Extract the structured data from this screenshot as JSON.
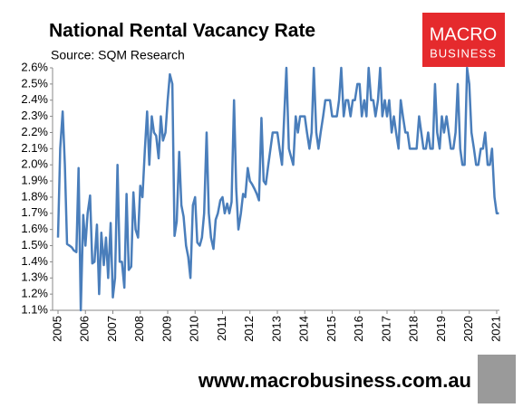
{
  "chart_data": {
    "type": "line",
    "title": "National Rental Vacancy Rate",
    "subtitle": "Source: SQM Research",
    "logo": {
      "line1": "MACRO",
      "line2": "BUSINESS"
    },
    "footer": "www.macrobusiness.com.au",
    "xlim": [
      2005,
      2021.1
    ],
    "xticks": [
      2005,
      2006,
      2007,
      2008,
      2009,
      2010,
      2011,
      2012,
      2013,
      2014,
      2015,
      2016,
      2017,
      2018,
      2019,
      2020,
      2021
    ],
    "ylim": [
      1.1,
      2.6
    ],
    "yticks": [
      {
        "value": 1.1,
        "label": "1.1%"
      },
      {
        "value": 1.2,
        "label": "1.2%"
      },
      {
        "value": 1.3,
        "label": "1.3%"
      },
      {
        "value": 1.4,
        "label": "1.4%"
      },
      {
        "value": 1.5,
        "label": "1.5%"
      },
      {
        "value": 1.6,
        "label": "1.6%"
      },
      {
        "value": 1.7,
        "label": "1.7%"
      },
      {
        "value": 1.8,
        "label": "1.8%"
      },
      {
        "value": 1.9,
        "label": "1.9%"
      },
      {
        "value": 2.0,
        "label": "2.0%"
      },
      {
        "value": 2.1,
        "label": "2.1%"
      },
      {
        "value": 2.2,
        "label": "2.2%"
      },
      {
        "value": 2.3,
        "label": "2.3%"
      },
      {
        "value": 2.4,
        "label": "2.4%"
      },
      {
        "value": 2.5,
        "label": "2.5%"
      },
      {
        "value": 2.6,
        "label": "2.6%"
      }
    ],
    "grid": false,
    "x": [
      2005,
      2005.08,
      2005.17,
      2005.25,
      2005.33,
      2005.42,
      2005.5,
      2005.58,
      2005.67,
      2005.75,
      2005.83,
      2005.92,
      2006,
      2006.08,
      2006.17,
      2006.25,
      2006.33,
      2006.42,
      2006.5,
      2006.58,
      2006.67,
      2006.75,
      2006.83,
      2006.92,
      2007,
      2007.08,
      2007.17,
      2007.25,
      2007.33,
      2007.42,
      2007.5,
      2007.58,
      2007.67,
      2007.75,
      2007.83,
      2007.92,
      2008,
      2008.08,
      2008.17,
      2008.25,
      2008.33,
      2008.42,
      2008.5,
      2008.58,
      2008.67,
      2008.75,
      2008.83,
      2008.92,
      2009,
      2009.08,
      2009.17,
      2009.25,
      2009.33,
      2009.42,
      2009.5,
      2009.58,
      2009.67,
      2009.75,
      2009.83,
      2009.92,
      2010,
      2010.08,
      2010.17,
      2010.25,
      2010.33,
      2010.42,
      2010.5,
      2010.58,
      2010.67,
      2010.75,
      2010.83,
      2010.92,
      2011,
      2011.08,
      2011.17,
      2011.25,
      2011.33,
      2011.42,
      2011.5,
      2011.58,
      2011.67,
      2011.75,
      2011.83,
      2011.92,
      2012,
      2012.08,
      2012.17,
      2012.25,
      2012.33,
      2012.42,
      2012.5,
      2012.58,
      2012.67,
      2012.75,
      2012.83,
      2012.92,
      2013,
      2013.08,
      2013.17,
      2013.25,
      2013.33,
      2013.42,
      2013.5,
      2013.58,
      2013.67,
      2013.75,
      2013.83,
      2013.92,
      2014,
      2014.08,
      2014.17,
      2014.25,
      2014.33,
      2014.42,
      2014.5,
      2014.58,
      2014.67,
      2014.75,
      2014.83,
      2014.92,
      2015,
      2015.08,
      2015.17,
      2015.25,
      2015.33,
      2015.42,
      2015.5,
      2015.58,
      2015.67,
      2015.75,
      2015.83,
      2015.92,
      2016,
      2016.08,
      2016.17,
      2016.25,
      2016.33,
      2016.42,
      2016.5,
      2016.58,
      2016.67,
      2016.75,
      2016.83,
      2016.92,
      2017,
      2017.08,
      2017.17,
      2017.25,
      2017.33,
      2017.42,
      2017.5,
      2017.58,
      2017.67,
      2017.75,
      2017.83,
      2017.92,
      2018,
      2018.08,
      2018.17,
      2018.25,
      2018.33,
      2018.42,
      2018.5,
      2018.58,
      2018.67,
      2018.75,
      2018.83,
      2018.92,
      2019,
      2019.08,
      2019.17,
      2019.25,
      2019.33,
      2019.42,
      2019.5,
      2019.58,
      2019.67,
      2019.75,
      2019.83,
      2019.92,
      2020,
      2020.08,
      2020.17,
      2020.25,
      2020.33,
      2020.42,
      2020.5,
      2020.58,
      2020.67,
      2020.75,
      2020.83,
      2020.92,
      2021,
      2021.08
    ],
    "series": [
      {
        "color": "#4a7ebb",
        "values": [
          1.55,
          2.1,
          2.33,
          2.0,
          1.51,
          1.5,
          1.49,
          1.47,
          1.46,
          1.98,
          1.1,
          1.69,
          1.5,
          1.7,
          1.81,
          1.39,
          1.4,
          1.63,
          1.2,
          1.58,
          1.38,
          1.55,
          1.3,
          1.64,
          1.18,
          1.3,
          2.0,
          1.4,
          1.4,
          1.24,
          1.82,
          1.35,
          1.37,
          1.83,
          1.6,
          1.55,
          1.87,
          1.8,
          2.1,
          2.33,
          2.0,
          2.3,
          2.2,
          2.18,
          2.04,
          2.3,
          2.15,
          2.2,
          2.4,
          2.56,
          2.5,
          1.56,
          1.65,
          2.08,
          1.75,
          1.68,
          1.5,
          1.43,
          1.3,
          1.75,
          1.8,
          1.52,
          1.5,
          1.55,
          1.7,
          2.2,
          1.7,
          1.55,
          1.48,
          1.66,
          1.7,
          1.78,
          1.8,
          1.7,
          1.76,
          1.7,
          1.77,
          2.4,
          1.85,
          1.6,
          1.7,
          1.82,
          1.8,
          1.98,
          1.9,
          1.88,
          1.85,
          1.82,
          1.78,
          2.29,
          1.9,
          1.88,
          2.0,
          2.1,
          2.2,
          2.2,
          2.2,
          2.1,
          2.0,
          2.3,
          2.6,
          2.1,
          2.05,
          2.0,
          2.3,
          2.2,
          2.3,
          2.3,
          2.3,
          2.2,
          2.1,
          2.2,
          2.6,
          2.2,
          2.1,
          2.2,
          2.3,
          2.4,
          2.4,
          2.4,
          2.3,
          2.3,
          2.3,
          2.4,
          2.6,
          2.3,
          2.4,
          2.4,
          2.3,
          2.4,
          2.4,
          2.5,
          2.5,
          2.3,
          2.4,
          2.3,
          2.6,
          2.4,
          2.4,
          2.3,
          2.4,
          2.6,
          2.3,
          2.4,
          2.3,
          2.4,
          2.2,
          2.3,
          2.2,
          2.1,
          2.4,
          2.3,
          2.2,
          2.2,
          2.1,
          2.1,
          2.1,
          2.1,
          2.3,
          2.2,
          2.1,
          2.1,
          2.2,
          2.1,
          2.1,
          2.5,
          2.2,
          2.1,
          2.3,
          2.2,
          2.3,
          2.2,
          2.1,
          2.1,
          2.2,
          2.5,
          2.1,
          2.0,
          2.0,
          2.6,
          2.5,
          2.2,
          2.1,
          2.0,
          2.0,
          2.1,
          2.1,
          2.2,
          2.0,
          2.0,
          2.1,
          1.8,
          1.7,
          1.7
        ]
      }
    ]
  }
}
